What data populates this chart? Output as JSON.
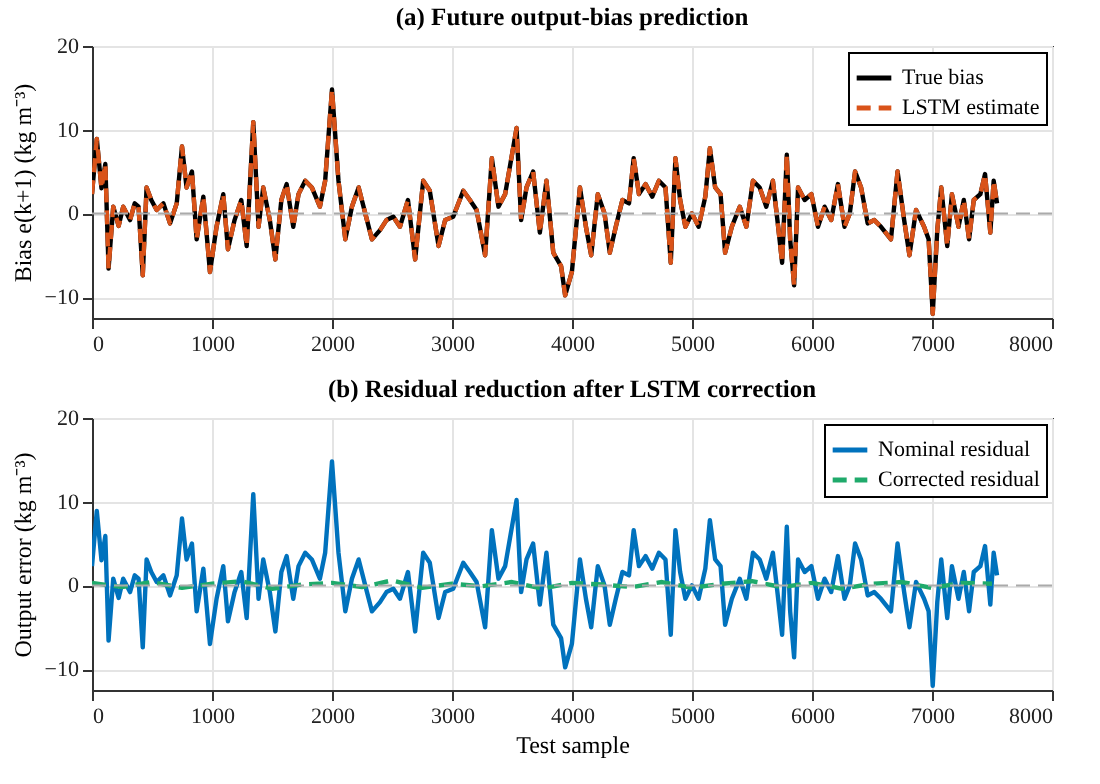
{
  "chart_data": [
    {
      "type": "line",
      "title": "(a) Future output-bias prediction",
      "ylabel": "Bias e(k+1) (kg m⁻³)",
      "xlim": [
        0,
        8000
      ],
      "xticks": [
        0,
        1000,
        2000,
        3000,
        4000,
        5000,
        6000,
        7000,
        8000
      ],
      "ylim": [
        -12.5,
        20
      ],
      "yticks": [
        -10,
        0,
        10,
        20
      ],
      "grid": true,
      "legend": "top right",
      "ref_lines": [
        {
          "axis": "y",
          "value": 0,
          "color": "#aaaaaa",
          "line_style": "dashed"
        }
      ],
      "x": [
        0,
        40,
        79,
        111,
        138,
        177,
        222,
        260,
        317,
        356,
        388,
        423,
        455,
        494,
        539,
        595,
        650,
        706,
        750,
        788,
        833,
        872,
        928,
        983,
        1038,
        1094,
        1133,
        1188,
        1244,
        1289,
        1344,
        1388,
        1427,
        1482,
        1528,
        1578,
        1622,
        1677,
        1721,
        1777,
        1832,
        1899,
        1943,
        2000,
        2054,
        2111,
        2166,
        2222,
        2277,
        2333,
        2400,
        2454,
        2511,
        2566,
        2633,
        2693,
        2760,
        2815,
        2888,
        2943,
        3010,
        3094,
        3149,
        3205,
        3276,
        3332,
        3387,
        3443,
        3538,
        3576,
        3621,
        3676,
        3732,
        3787,
        3844,
        3909,
        3943,
        3999,
        4066,
        4116,
        4160,
        4215,
        4271,
        4315,
        4365,
        4420,
        4475,
        4514,
        4558,
        4613,
        4669,
        4724,
        4779,
        4823,
        4862,
        4901,
        4945,
        5000,
        5055,
        5111,
        5149,
        5193,
        5238,
        5276,
        5332,
        5398,
        5453,
        5508,
        5564,
        5619,
        5674,
        5718,
        5751,
        5790,
        5818,
        5851,
        5884,
        5939,
        5995,
        6050,
        6105,
        6160,
        6216,
        6271,
        6315,
        6359,
        6409,
        6464,
        6519,
        6575,
        6658,
        6713,
        6768,
        6812,
        6867,
        6934,
        6972,
        7006,
        7044,
        7077,
        7127,
        7166,
        7221,
        7265,
        7309,
        7348,
        7403,
        7442,
        7486,
        7514,
        7542
      ],
      "series": [
        {
          "name": "True bias",
          "color": "#000000",
          "line_style": "solid",
          "values": [
            2.3,
            8.9,
            3,
            5.9,
            -6.6,
            0.8,
            -1.5,
            0.8,
            -0.8,
            1.2,
            0.8,
            -7.4,
            3.1,
            1.6,
            0.4,
            1.2,
            -1.2,
            1.2,
            8,
            3.1,
            5,
            -3.1,
            2,
            -7,
            -1.6,
            2.3,
            -4.3,
            -0.8,
            1.6,
            -3.9,
            10.9,
            -1.6,
            3.1,
            -0.8,
            -5.5,
            1.6,
            3.5,
            -1.6,
            2.3,
            3.9,
            3.1,
            0.8,
            3.9,
            14.8,
            3.9,
            -3.1,
            0.8,
            3.1,
            0,
            -3.1,
            -2,
            -0.8,
            -0.4,
            -1.6,
            1.6,
            -5.5,
            3.9,
            2.7,
            -3.9,
            -0.8,
            -0.4,
            2.7,
            1.6,
            0.4,
            -5,
            6.6,
            0.8,
            2.3,
            10.2,
            -0.8,
            3.1,
            5,
            -2.3,
            3.9,
            -4.7,
            -6.3,
            -9.8,
            -7,
            3.1,
            -1.6,
            -5,
            2.3,
            0,
            -4.7,
            -1.6,
            1.6,
            1.2,
            6.6,
            2.3,
            3.5,
            2,
            3.9,
            3.1,
            -5.9,
            6.6,
            1.6,
            -1.6,
            0,
            -1.6,
            2,
            7.8,
            3.1,
            2.3,
            -4.7,
            -1.6,
            0.8,
            -1.6,
            3.9,
            3.1,
            0.8,
            3.9,
            -1.6,
            -5.9,
            7,
            -3.1,
            -8.6,
            3.1,
            1.6,
            2.3,
            -1.6,
            0.8,
            -0.8,
            3.5,
            -1.6,
            0,
            5,
            3.1,
            -1.2,
            -0.8,
            -1.6,
            -3.1,
            5,
            -0.8,
            -5,
            0.4,
            -1.6,
            -3.1,
            -12,
            -2,
            3.1,
            -3.9,
            2.3,
            -1.6,
            1.6,
            -3.1,
            1.6,
            2.3,
            4.7,
            -2.3,
            3.9,
            1.2
          ]
        },
        {
          "name": "LSTM estimate",
          "color": "#d95319",
          "line_style": "dashed",
          "values": [
            2.3,
            8.9,
            3,
            5.9,
            -6.6,
            0.8,
            -1.5,
            0.8,
            -0.8,
            1.2,
            0.8,
            -7.4,
            3.1,
            1.6,
            0.4,
            1.2,
            -1.2,
            1.2,
            8,
            3.1,
            5,
            -3.1,
            2,
            -7,
            -1.6,
            2.3,
            -4.3,
            -0.8,
            1.6,
            -3.9,
            10.9,
            -1.6,
            3.1,
            -0.8,
            -5.5,
            1.6,
            3.5,
            -1.6,
            2.3,
            3.9,
            3.1,
            0.8,
            3.9,
            14.8,
            3.9,
            -3.1,
            0.8,
            3.1,
            0,
            -3.1,
            -2,
            -0.8,
            -0.4,
            -1.6,
            1.6,
            -5.5,
            3.9,
            2.7,
            -3.9,
            -0.8,
            -0.4,
            2.7,
            1.6,
            0.4,
            -5,
            6.6,
            0.8,
            2.3,
            10.2,
            -0.8,
            3.1,
            5,
            -2.3,
            3.9,
            -4.7,
            -6.3,
            -9.8,
            -7,
            3.1,
            -1.6,
            -5,
            2.3,
            0,
            -4.7,
            -1.6,
            1.6,
            1.2,
            6.6,
            2.3,
            3.5,
            2,
            3.9,
            3.1,
            -5.9,
            6.6,
            1.6,
            -1.6,
            0,
            -1.6,
            2,
            7.8,
            3.1,
            2.3,
            -4.7,
            -1.6,
            0.8,
            -1.6,
            3.9,
            3.1,
            0.8,
            3.9,
            -1.6,
            -5.9,
            7,
            -3.1,
            -8.6,
            3.1,
            1.6,
            2.3,
            -1.6,
            0.8,
            -0.8,
            3.5,
            -1.6,
            0,
            5,
            3.1,
            -1.2,
            -0.8,
            -1.6,
            -3.1,
            5,
            -0.8,
            -5,
            0.4,
            -1.6,
            -3.1,
            -12,
            -2,
            3.1,
            -3.9,
            2.3,
            -1.6,
            1.6,
            -3.1,
            1.6,
            2.3,
            4.7,
            -2.3,
            3.9,
            1.2
          ]
        }
      ]
    },
    {
      "type": "line",
      "title": "(b) Residual reduction after LSTM correction",
      "xlabel": "Test sample",
      "ylabel": "Output error (kg m⁻³)",
      "xlim": [
        0,
        8000
      ],
      "xticks": [
        0,
        1000,
        2000,
        3000,
        4000,
        5000,
        6000,
        7000,
        8000
      ],
      "ylim": [
        -12.5,
        20
      ],
      "yticks": [
        -10,
        0,
        10,
        20
      ],
      "grid": true,
      "legend": "top right",
      "ref_lines": [
        {
          "axis": "y",
          "value": 0,
          "color": "#aaaaaa",
          "line_style": "dashed"
        }
      ],
      "x": [
        0,
        40,
        79,
        111,
        138,
        177,
        222,
        260,
        317,
        356,
        388,
        423,
        455,
        494,
        539,
        595,
        650,
        706,
        750,
        788,
        833,
        872,
        928,
        983,
        1038,
        1094,
        1133,
        1188,
        1244,
        1289,
        1344,
        1388,
        1427,
        1482,
        1528,
        1578,
        1622,
        1677,
        1721,
        1777,
        1832,
        1899,
        1943,
        2000,
        2054,
        2111,
        2166,
        2222,
        2277,
        2333,
        2400,
        2454,
        2511,
        2566,
        2633,
        2693,
        2760,
        2815,
        2888,
        2943,
        3010,
        3094,
        3149,
        3205,
        3276,
        3332,
        3387,
        3443,
        3538,
        3576,
        3621,
        3676,
        3732,
        3787,
        3844,
        3909,
        3943,
        3999,
        4066,
        4116,
        4160,
        4215,
        4271,
        4315,
        4365,
        4420,
        4475,
        4514,
        4558,
        4613,
        4669,
        4724,
        4779,
        4823,
        4862,
        4901,
        4945,
        5000,
        5055,
        5111,
        5149,
        5193,
        5238,
        5276,
        5332,
        5398,
        5453,
        5508,
        5564,
        5619,
        5674,
        5718,
        5751,
        5790,
        5818,
        5851,
        5884,
        5939,
        5995,
        6050,
        6105,
        6160,
        6216,
        6271,
        6315,
        6359,
        6409,
        6464,
        6519,
        6575,
        6658,
        6713,
        6768,
        6812,
        6867,
        6934,
        6972,
        7006,
        7044,
        7077,
        7127,
        7166,
        7221,
        7265,
        7309,
        7348,
        7403,
        7442,
        7486,
        7514,
        7542
      ],
      "series": [
        {
          "name": "Nominal residual",
          "color": "#0072bd",
          "line_style": "solid",
          "values": [
            2.3,
            8.9,
            3,
            5.9,
            -6.6,
            0.8,
            -1.5,
            0.8,
            -0.8,
            1.2,
            0.8,
            -7.4,
            3.1,
            1.6,
            0.4,
            1.2,
            -1.2,
            1.2,
            8,
            3.1,
            5,
            -3.1,
            2,
            -7,
            -1.6,
            2.3,
            -4.3,
            -0.8,
            1.6,
            -3.9,
            10.9,
            -1.6,
            3.1,
            -0.8,
            -5.5,
            1.6,
            3.5,
            -1.6,
            2.3,
            3.9,
            3.1,
            0.8,
            3.9,
            14.8,
            3.9,
            -3.1,
            0.8,
            3.1,
            0,
            -3.1,
            -2,
            -0.8,
            -0.4,
            -1.6,
            1.6,
            -5.5,
            3.9,
            2.7,
            -3.9,
            -0.8,
            -0.4,
            2.7,
            1.6,
            0.4,
            -5,
            6.6,
            0.8,
            2.3,
            10.2,
            -0.8,
            3.1,
            5,
            -2.3,
            3.9,
            -4.7,
            -6.3,
            -9.8,
            -7,
            3.1,
            -1.6,
            -5,
            2.3,
            0,
            -4.7,
            -1.6,
            1.6,
            1.2,
            6.6,
            2.3,
            3.5,
            2,
            3.9,
            3.1,
            -5.9,
            6.6,
            1.6,
            -1.6,
            0,
            -1.6,
            2,
            7.8,
            3.1,
            2.3,
            -4.7,
            -1.6,
            0.8,
            -1.6,
            3.9,
            3.1,
            0.8,
            3.9,
            -1.6,
            -5.9,
            7,
            -3.1,
            -8.6,
            3.1,
            1.6,
            2.3,
            -1.6,
            0.8,
            -0.8,
            3.5,
            -1.6,
            0,
            5,
            3.1,
            -1.2,
            -0.8,
            -1.6,
            -3.1,
            5,
            -0.8,
            -5,
            0.4,
            -1.6,
            -3.1,
            -12,
            -2,
            3.1,
            -3.9,
            2.3,
            -1.6,
            1.6,
            -3.1,
            1.6,
            2.3,
            4.7,
            -2.3,
            3.9,
            1.2
          ]
        },
        {
          "name": "Corrected residual",
          "color": "#1faa6b",
          "line_style": "dashed",
          "x": [
            0,
            250,
            500,
            750,
            1000,
            1250,
            1500,
            1750,
            2000,
            2250,
            2500,
            2750,
            3000,
            3250,
            3500,
            3750,
            4000,
            4250,
            4500,
            4750,
            5000,
            5250,
            5500,
            5750,
            6000,
            6250,
            6500,
            6750,
            7000,
            7250,
            7500
          ],
          "values": [
            0.3,
            -0.2,
            0.4,
            -0.3,
            0.2,
            0.5,
            -0.4,
            0.1,
            0.3,
            -0.2,
            0.6,
            -0.3,
            0.2,
            -0.1,
            0.4,
            -0.4,
            0.3,
            0.1,
            -0.2,
            0.4,
            -0.3,
            0.2,
            0.5,
            -0.2,
            0.3,
            -0.4,
            0.2,
            0.4,
            -0.3,
            0.3,
            0.2
          ]
        }
      ]
    }
  ]
}
